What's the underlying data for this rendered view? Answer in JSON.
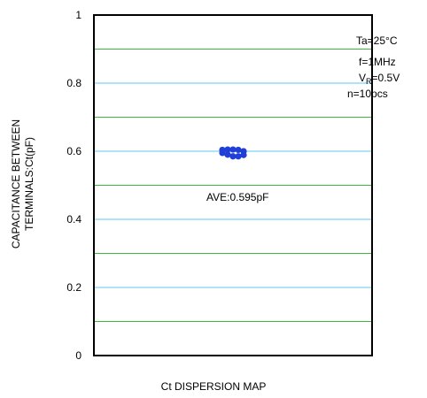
{
  "chart_data": {
    "type": "scatter",
    "title": "",
    "xlabel": "Ct DISPERSION MAP",
    "ylabel_lines": [
      "CAPACITANCE BETWEEN",
      "TERMINALS:Ct(pF)"
    ],
    "ylim": [
      0,
      1
    ],
    "yticks": [
      "0",
      "0.2",
      "0.4",
      "0.6",
      "0.8",
      "1"
    ],
    "major_gridlines": [
      0.2,
      0.4,
      0.6,
      0.8
    ],
    "minor_gridlines": [
      0.1,
      0.3,
      0.5,
      0.7,
      0.9
    ],
    "major_grid_color": "#5bc8f0",
    "minor_grid_color": "#3cb83c",
    "point_color": "#1f3fd6",
    "points": [
      0.604,
      0.605,
      0.605,
      0.604,
      0.6,
      0.595,
      0.59,
      0.585,
      0.585,
      0.589
    ],
    "conditions": {
      "temp": "Ta=25°C",
      "freq": "f=1MHz",
      "vr_prefix": "V",
      "vr_sub": "R",
      "vr_suffix": "=0.5V",
      "count": "n=10pcs"
    },
    "average_label": "AVE:0.595pF"
  }
}
